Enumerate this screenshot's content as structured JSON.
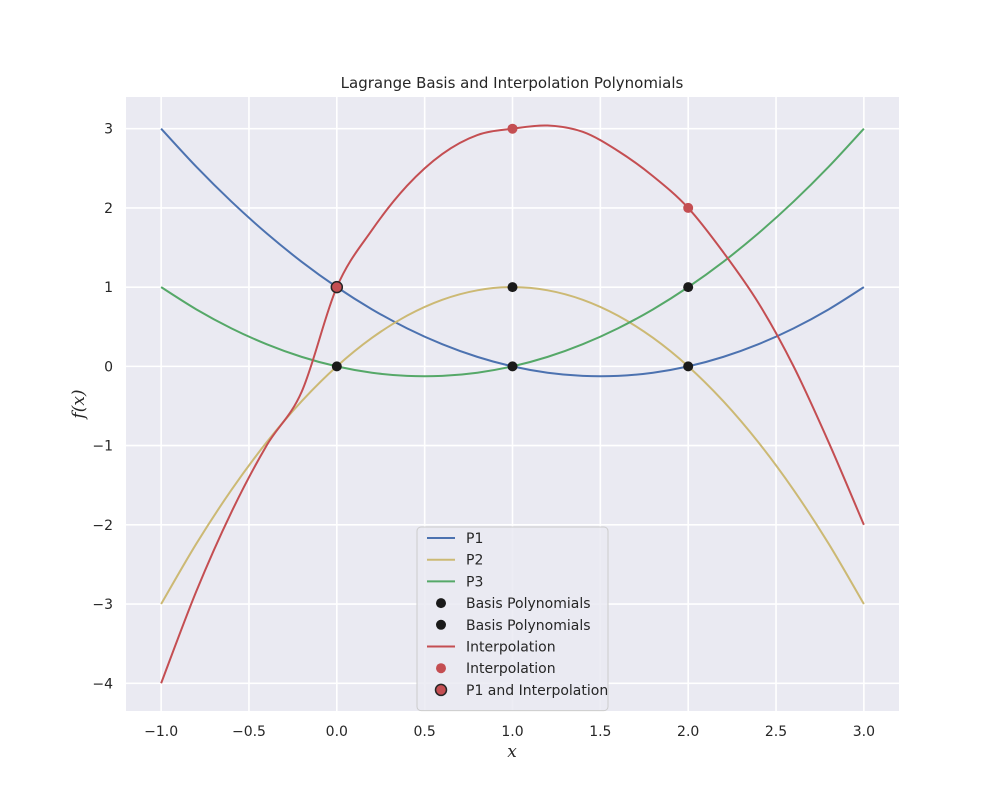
{
  "chart_data": {
    "type": "line",
    "title": "Lagrange Basis and Interpolation Polynomials",
    "xlabel": "x",
    "ylabel": "f(x)",
    "xlim": [
      -1.2,
      3.2
    ],
    "ylim": [
      -4.35,
      3.4
    ],
    "xticks": [
      -1.0,
      -0.5,
      0.0,
      0.5,
      1.0,
      1.5,
      2.0,
      2.5,
      3.0
    ],
    "xtick_labels": [
      "−1.0",
      "−0.5",
      "0.0",
      "0.5",
      "1.0",
      "1.5",
      "2.0",
      "2.5",
      "3.0"
    ],
    "yticks": [
      -4,
      -3,
      -2,
      -1,
      0,
      1,
      2,
      3
    ],
    "ytick_labels": [
      "−4",
      "−3",
      "−2",
      "−1",
      "0",
      "1",
      "2",
      "3"
    ],
    "grid": true,
    "background": "#eaeaf2",
    "legend_position": "lower-center",
    "series": [
      {
        "name": "P1",
        "kind": "line",
        "color": "#4c72b0",
        "x": [
          -1.0,
          -0.8,
          -0.6,
          -0.4,
          -0.2,
          0.0,
          0.2,
          0.4,
          0.6,
          0.8,
          1.0,
          1.2,
          1.4,
          1.6,
          1.8,
          2.0,
          2.2,
          2.4,
          2.6,
          2.8,
          3.0
        ],
        "y": [
          3.0,
          2.52,
          2.08,
          1.68,
          1.32,
          1.0,
          0.72,
          0.48,
          0.28,
          0.12,
          0.0,
          -0.08,
          -0.12,
          -0.12,
          -0.08,
          0.0,
          0.12,
          0.28,
          0.48,
          0.72,
          1.0
        ]
      },
      {
        "name": "P2",
        "kind": "line",
        "color": "#ccb974",
        "x": [
          -1.0,
          -0.8,
          -0.6,
          -0.4,
          -0.2,
          0.0,
          0.2,
          0.4,
          0.6,
          0.8,
          1.0,
          1.2,
          1.4,
          1.6,
          1.8,
          2.0,
          2.2,
          2.4,
          2.6,
          2.8,
          3.0
        ],
        "y": [
          -3.0,
          -2.24,
          -1.56,
          -0.96,
          -0.44,
          0.0,
          0.36,
          0.64,
          0.84,
          0.96,
          1.0,
          0.96,
          0.84,
          0.64,
          0.36,
          0.0,
          -0.44,
          -0.96,
          -1.56,
          -2.24,
          -3.0
        ]
      },
      {
        "name": "P3",
        "kind": "line",
        "color": "#55a868",
        "x": [
          -1.0,
          -0.8,
          -0.6,
          -0.4,
          -0.2,
          0.0,
          0.2,
          0.4,
          0.6,
          0.8,
          1.0,
          1.2,
          1.4,
          1.6,
          1.8,
          2.0,
          2.2,
          2.4,
          2.6,
          2.8,
          3.0
        ],
        "y": [
          1.0,
          0.72,
          0.48,
          0.28,
          0.12,
          0.0,
          -0.08,
          -0.12,
          -0.12,
          -0.08,
          0.0,
          0.12,
          0.28,
          0.48,
          0.72,
          1.0,
          1.32,
          1.68,
          2.08,
          2.52,
          3.0
        ]
      },
      {
        "name": "Basis Polynomials",
        "kind": "points",
        "color": "#1a1a1a",
        "x": [
          0.0,
          1.0,
          2.0
        ],
        "y": [
          1.0,
          1.0,
          1.0
        ]
      },
      {
        "name": "Basis Polynomials",
        "kind": "points",
        "color": "#1a1a1a",
        "x": [
          0.0,
          1.0,
          2.0
        ],
        "y": [
          0.0,
          0.0,
          0.0
        ]
      },
      {
        "name": "Interpolation",
        "kind": "line",
        "color": "#c44e52",
        "x": [
          -1.0,
          -0.8,
          -0.6,
          -0.4,
          -0.2,
          0.0,
          0.2,
          0.4,
          0.6,
          0.8,
          1.0,
          1.2,
          1.4,
          1.6,
          1.8,
          2.0,
          2.2,
          2.4,
          2.6,
          2.8,
          3.0
        ],
        "y": [
          -4.0,
          -2.84,
          -1.84,
          -1.0,
          -0.32,
          1.0,
          1.72,
          2.28,
          2.68,
          2.92,
          3.0,
          3.04,
          2.96,
          2.72,
          2.4,
          2.0,
          1.44,
          0.8,
          0.0,
          -0.96,
          -2.0
        ]
      },
      {
        "name": "Interpolation",
        "kind": "points",
        "color": "#c44e52",
        "x": [
          0.0,
          1.0,
          2.0
        ],
        "y": [
          1.0,
          3.0,
          2.0
        ]
      },
      {
        "name": "P1 and Interpolation",
        "kind": "marker",
        "color": "#c44e52",
        "edge_color": "#262626",
        "x": [
          0.0
        ],
        "y": [
          1.0
        ]
      }
    ]
  }
}
